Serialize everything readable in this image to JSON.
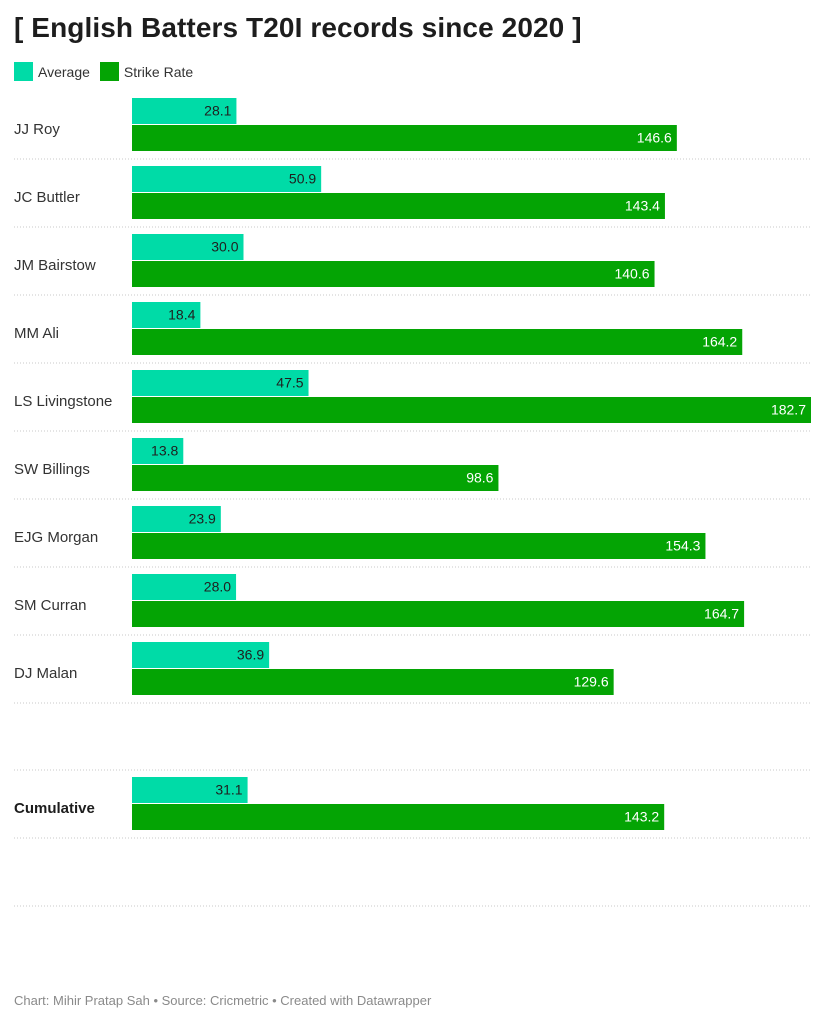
{
  "title": "[ English Batters T20I records since 2020 ]",
  "legend": [
    {
      "label": "Average",
      "color": "#00dba7"
    },
    {
      "label": "Strike Rate",
      "color": "#04a404"
    }
  ],
  "footer": "Chart: Mihir Pratap Sah • Source: Cricmetric • Created with Datawrapper",
  "chart_data": {
    "type": "bar",
    "orientation": "horizontal",
    "categories": [
      "JJ Roy",
      "JC Buttler",
      "JM Bairstow",
      "MM Ali",
      "LS Livingstone",
      "SW Billings",
      "EJG Morgan",
      "SM Curran",
      "DJ Malan",
      "Cumulative"
    ],
    "series": [
      {
        "name": "Average",
        "color": "#00dba7",
        "values": [
          28.1,
          50.9,
          30.0,
          18.4,
          47.5,
          13.8,
          23.9,
          28.0,
          36.9,
          31.1
        ]
      },
      {
        "name": "Strike Rate",
        "color": "#04a404",
        "values": [
          146.6,
          143.4,
          140.6,
          164.2,
          182.7,
          98.6,
          154.3,
          164.7,
          129.6,
          143.2
        ]
      }
    ],
    "xlim": [
      0,
      182.7
    ],
    "grid": false,
    "legend_position": "top-left"
  }
}
